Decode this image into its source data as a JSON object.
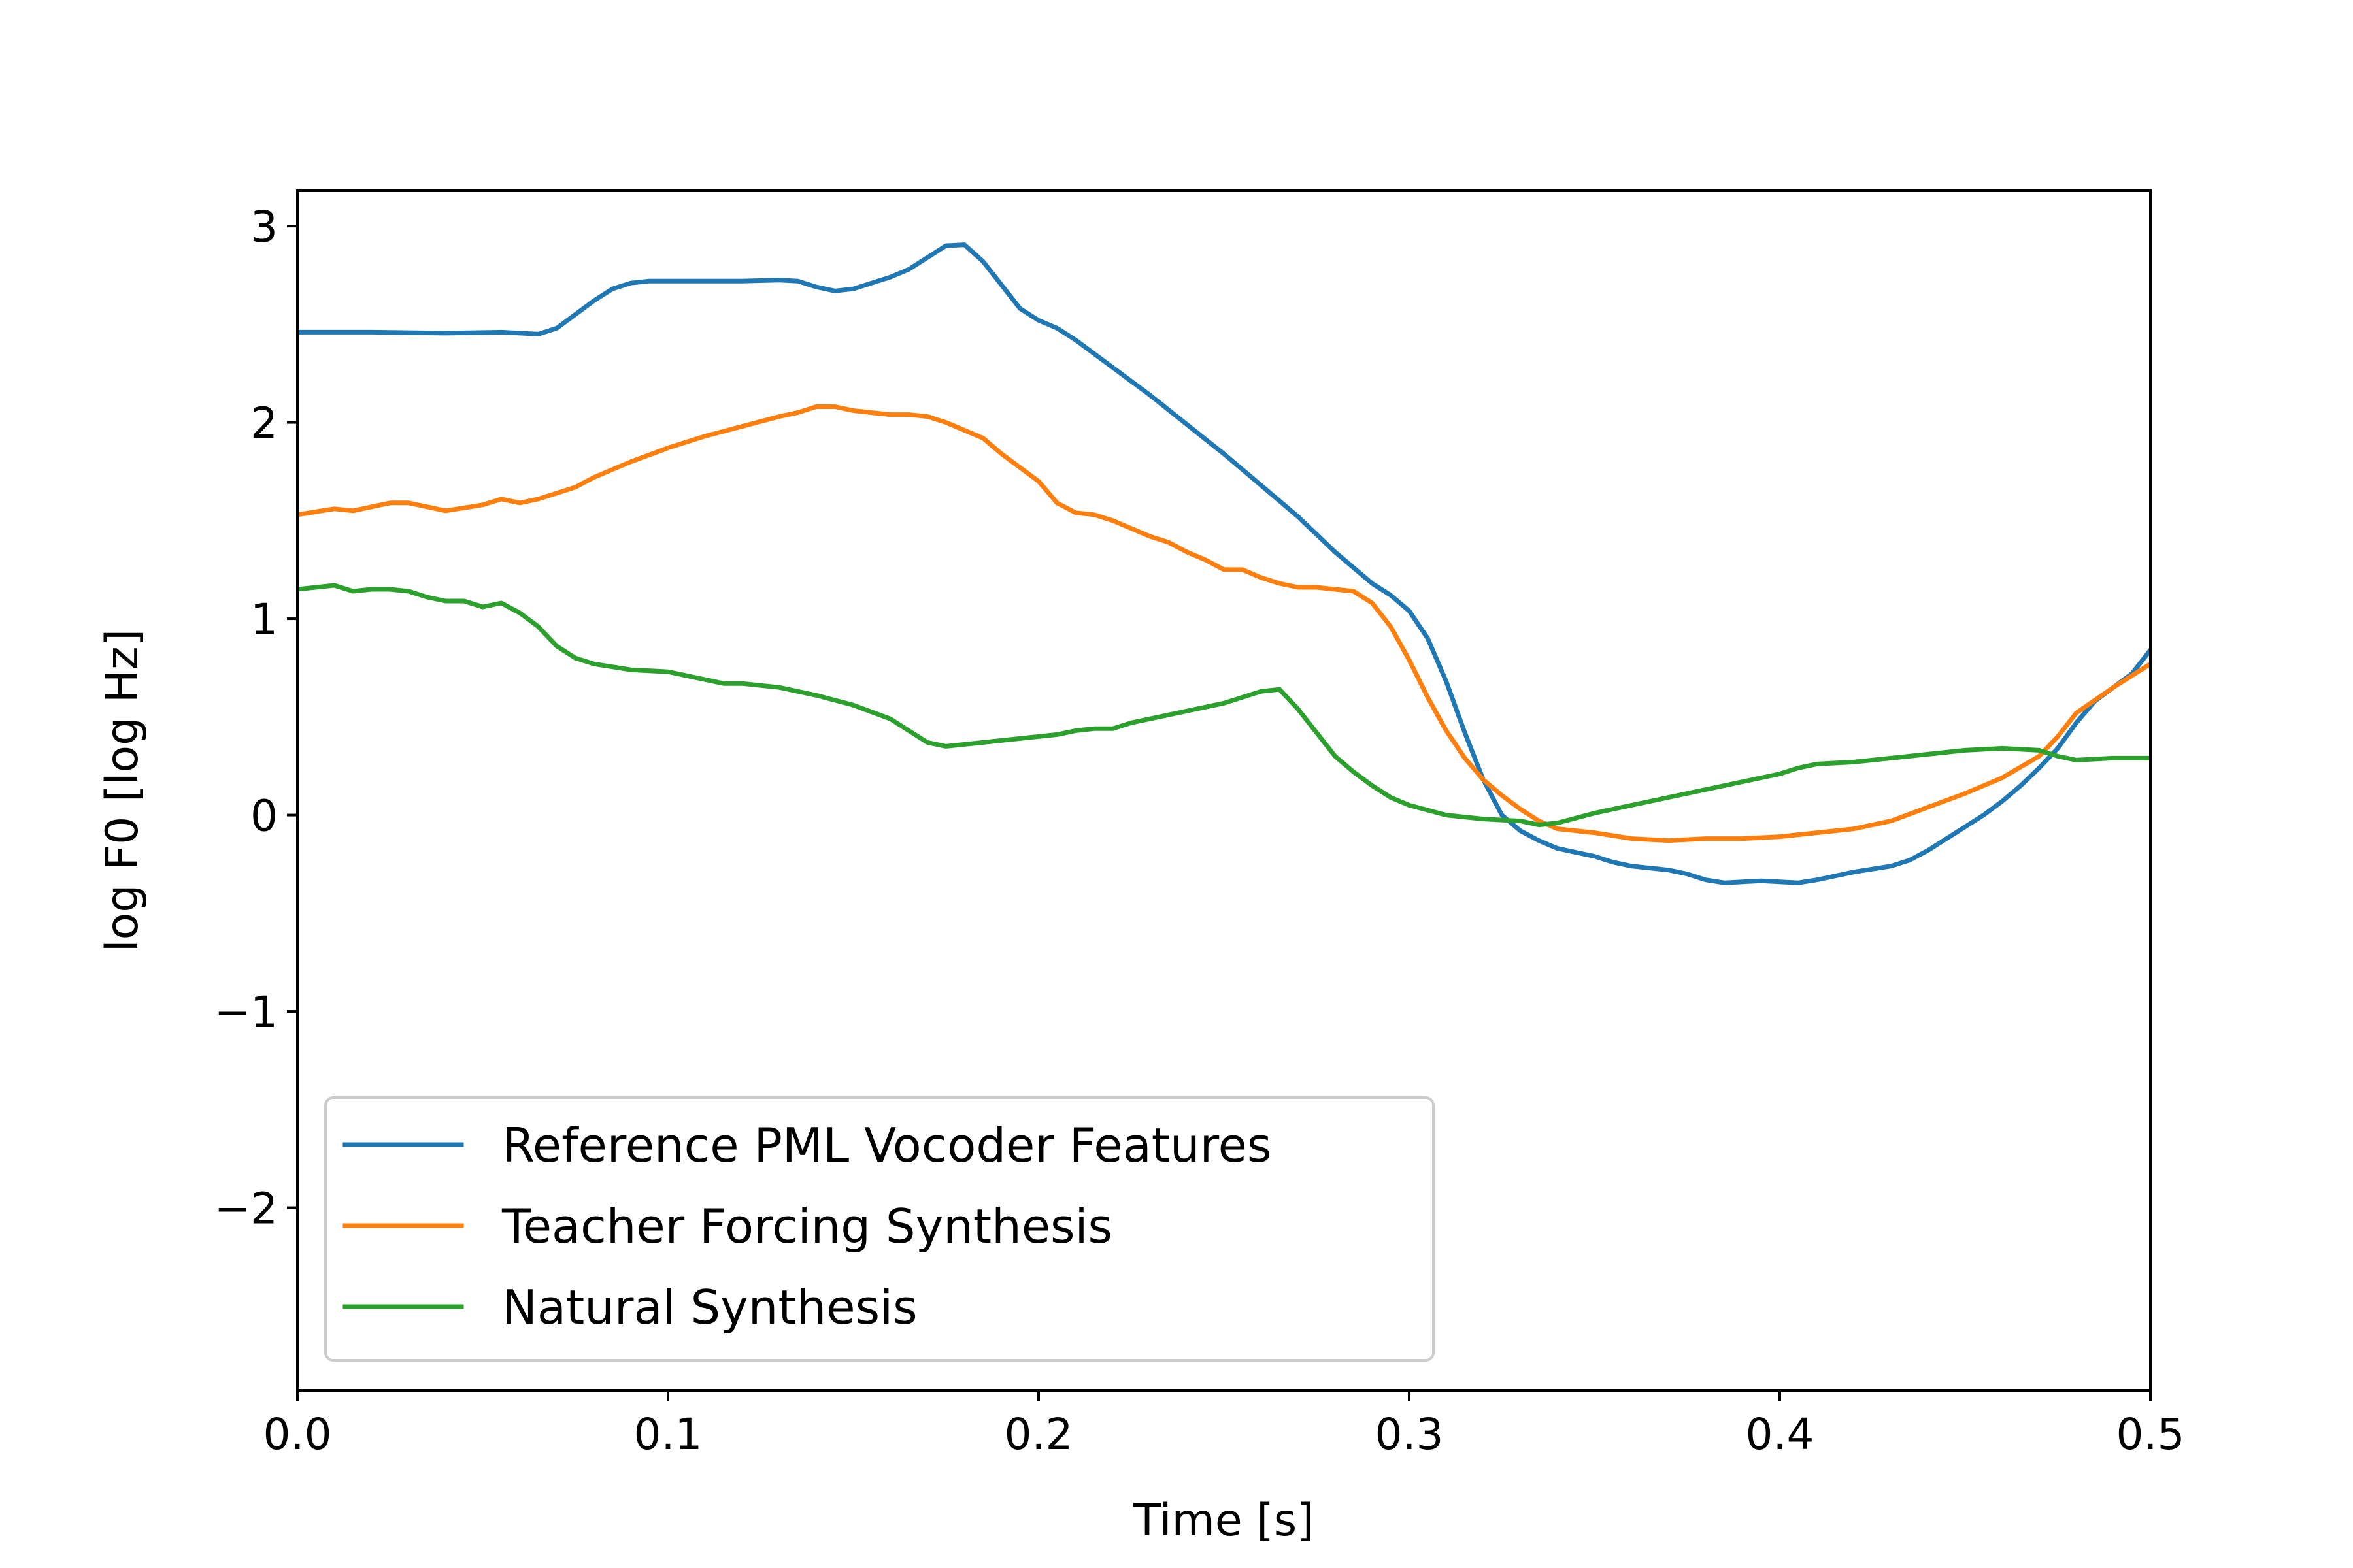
{
  "chart_data": {
    "type": "line",
    "title": "",
    "xlabel": "Time [s]",
    "ylabel": "log F0 [log Hz]",
    "xlim": [
      0.0,
      0.5
    ],
    "ylim": [
      -2.93,
      3.18
    ],
    "xticks": [
      0.0,
      0.1,
      0.2,
      0.3,
      0.4,
      0.5
    ],
    "xtick_labels": [
      "0.0",
      "0.1",
      "0.2",
      "0.3",
      "0.4",
      "0.5"
    ],
    "yticks": [
      3,
      2,
      1,
      0,
      -1,
      -2
    ],
    "ytick_labels": [
      "3",
      "2",
      "1",
      "0",
      "−1",
      "−2"
    ],
    "grid": false,
    "legend_position": "lower-left",
    "series": [
      {
        "name": "Reference PML Vocoder Features",
        "color": "#1f77b4",
        "x": [
          0.0,
          0.02,
          0.04,
          0.055,
          0.065,
          0.07,
          0.075,
          0.08,
          0.085,
          0.09,
          0.095,
          0.1,
          0.11,
          0.12,
          0.13,
          0.135,
          0.14,
          0.145,
          0.15,
          0.155,
          0.16,
          0.165,
          0.17,
          0.175,
          0.18,
          0.185,
          0.19,
          0.195,
          0.2,
          0.205,
          0.21,
          0.215,
          0.22,
          0.23,
          0.24,
          0.25,
          0.26,
          0.27,
          0.28,
          0.285,
          0.29,
          0.295,
          0.3,
          0.305,
          0.31,
          0.315,
          0.32,
          0.325,
          0.33,
          0.335,
          0.34,
          0.345,
          0.35,
          0.355,
          0.36,
          0.365,
          0.37,
          0.375,
          0.38,
          0.385,
          0.39,
          0.395,
          0.4,
          0.405,
          0.41,
          0.415,
          0.42,
          0.425,
          0.43,
          0.435,
          0.44,
          0.445,
          0.45,
          0.455,
          0.46,
          0.465,
          0.47,
          0.475,
          0.48,
          0.485,
          0.49,
          0.495,
          0.5
        ],
        "y": [
          2.46,
          2.46,
          2.455,
          2.46,
          2.45,
          2.48,
          2.55,
          2.62,
          2.68,
          2.71,
          2.72,
          2.72,
          2.72,
          2.72,
          2.725,
          2.72,
          2.69,
          2.67,
          2.68,
          2.71,
          2.74,
          2.78,
          2.84,
          2.9,
          2.905,
          2.82,
          2.7,
          2.58,
          2.52,
          2.48,
          2.42,
          2.35,
          2.28,
          2.14,
          1.99,
          1.84,
          1.68,
          1.52,
          1.34,
          1.26,
          1.18,
          1.12,
          1.04,
          0.9,
          0.68,
          0.42,
          0.18,
          0.0,
          -0.08,
          -0.13,
          -0.17,
          -0.19,
          -0.21,
          -0.24,
          -0.26,
          -0.27,
          -0.28,
          -0.3,
          -0.33,
          -0.345,
          -0.34,
          -0.335,
          -0.34,
          -0.345,
          -0.33,
          -0.31,
          -0.29,
          -0.275,
          -0.26,
          -0.23,
          -0.18,
          -0.12,
          -0.06,
          0.0,
          0.07,
          0.15,
          0.24,
          0.34,
          0.47,
          0.58,
          0.65,
          0.72,
          0.84
        ]
      },
      {
        "name": "Teacher Forcing Synthesis",
        "color": "#ff7f0e",
        "x": [
          0.0,
          0.01,
          0.015,
          0.02,
          0.025,
          0.03,
          0.035,
          0.04,
          0.05,
          0.055,
          0.06,
          0.065,
          0.07,
          0.075,
          0.08,
          0.09,
          0.1,
          0.11,
          0.12,
          0.13,
          0.135,
          0.14,
          0.145,
          0.15,
          0.155,
          0.16,
          0.165,
          0.17,
          0.175,
          0.18,
          0.185,
          0.19,
          0.195,
          0.2,
          0.205,
          0.21,
          0.215,
          0.22,
          0.225,
          0.23,
          0.235,
          0.24,
          0.245,
          0.25,
          0.255,
          0.26,
          0.265,
          0.27,
          0.275,
          0.28,
          0.285,
          0.29,
          0.295,
          0.3,
          0.305,
          0.31,
          0.315,
          0.32,
          0.325,
          0.33,
          0.335,
          0.34,
          0.35,
          0.36,
          0.37,
          0.38,
          0.39,
          0.4,
          0.41,
          0.42,
          0.43,
          0.44,
          0.45,
          0.46,
          0.47,
          0.475,
          0.48,
          0.49,
          0.5
        ],
        "y": [
          1.53,
          1.56,
          1.55,
          1.57,
          1.59,
          1.59,
          1.57,
          1.55,
          1.58,
          1.61,
          1.59,
          1.61,
          1.64,
          1.67,
          1.72,
          1.8,
          1.87,
          1.93,
          1.98,
          2.03,
          2.05,
          2.08,
          2.08,
          2.06,
          2.05,
          2.04,
          2.04,
          2.03,
          2.0,
          1.96,
          1.92,
          1.84,
          1.77,
          1.7,
          1.59,
          1.54,
          1.53,
          1.5,
          1.46,
          1.42,
          1.39,
          1.34,
          1.3,
          1.25,
          1.25,
          1.21,
          1.18,
          1.16,
          1.16,
          1.15,
          1.14,
          1.08,
          0.96,
          0.79,
          0.6,
          0.43,
          0.29,
          0.18,
          0.1,
          0.03,
          -0.03,
          -0.07,
          -0.09,
          -0.12,
          -0.13,
          -0.12,
          -0.12,
          -0.11,
          -0.09,
          -0.07,
          -0.03,
          0.04,
          0.11,
          0.19,
          0.3,
          0.4,
          0.52,
          0.65,
          0.77
        ]
      },
      {
        "name": "Natural Synthesis",
        "color": "#2ca02c",
        "x": [
          0.0,
          0.01,
          0.015,
          0.02,
          0.025,
          0.03,
          0.035,
          0.04,
          0.045,
          0.05,
          0.055,
          0.06,
          0.065,
          0.07,
          0.075,
          0.08,
          0.09,
          0.1,
          0.11,
          0.115,
          0.12,
          0.13,
          0.14,
          0.15,
          0.16,
          0.165,
          0.17,
          0.175,
          0.18,
          0.19,
          0.2,
          0.205,
          0.21,
          0.215,
          0.22,
          0.225,
          0.23,
          0.24,
          0.25,
          0.255,
          0.26,
          0.265,
          0.27,
          0.275,
          0.28,
          0.285,
          0.29,
          0.295,
          0.3,
          0.31,
          0.32,
          0.33,
          0.335,
          0.34,
          0.35,
          0.36,
          0.37,
          0.38,
          0.39,
          0.395,
          0.4,
          0.405,
          0.41,
          0.42,
          0.43,
          0.44,
          0.45,
          0.46,
          0.47,
          0.475,
          0.48,
          0.49,
          0.5
        ],
        "y": [
          1.15,
          1.17,
          1.14,
          1.15,
          1.15,
          1.14,
          1.11,
          1.09,
          1.09,
          1.06,
          1.08,
          1.03,
          0.96,
          0.86,
          0.8,
          0.77,
          0.74,
          0.73,
          0.69,
          0.67,
          0.67,
          0.65,
          0.61,
          0.56,
          0.49,
          0.43,
          0.37,
          0.35,
          0.36,
          0.38,
          0.4,
          0.41,
          0.43,
          0.44,
          0.44,
          0.47,
          0.49,
          0.53,
          0.57,
          0.6,
          0.63,
          0.64,
          0.54,
          0.42,
          0.3,
          0.22,
          0.15,
          0.09,
          0.05,
          0.0,
          -0.02,
          -0.03,
          -0.05,
          -0.04,
          0.01,
          0.05,
          0.09,
          0.13,
          0.17,
          0.19,
          0.21,
          0.24,
          0.26,
          0.27,
          0.29,
          0.31,
          0.33,
          0.34,
          0.33,
          0.3,
          0.28,
          0.29,
          0.29
        ]
      }
    ]
  }
}
